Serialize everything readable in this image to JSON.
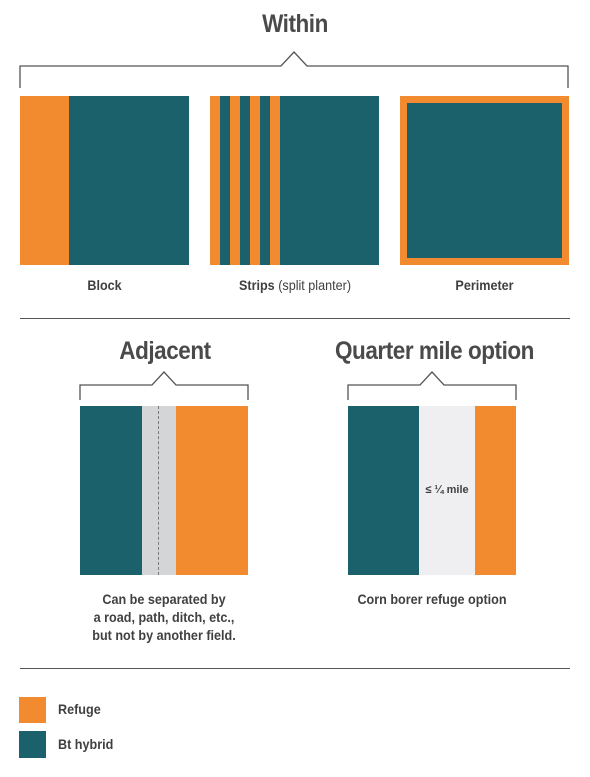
{
  "sections": {
    "within": {
      "title": "Within",
      "block_label": "Block",
      "strips_label_bold": "Strips",
      "strips_label_rest": " (split planter)",
      "perimeter_label": "Perimeter"
    },
    "adjacent": {
      "title": "Adjacent",
      "note_lines": [
        "Can be separated by",
        "a road, path, ditch, etc.,",
        "but not by another field."
      ]
    },
    "quarter_mile": {
      "title": "Quarter mile option",
      "distance_label": "≤ ¼ mile",
      "note": "Corn borer refuge option"
    }
  },
  "legend": [
    {
      "label": "Refuge",
      "color": "#f28a30"
    },
    {
      "label": "Bt hybrid",
      "color": "#1b616b"
    }
  ],
  "colors": {
    "refuge": "#f28a30",
    "bt_hybrid": "#1b616b",
    "road": "#d4d5d7",
    "gap": "#efeff1"
  }
}
